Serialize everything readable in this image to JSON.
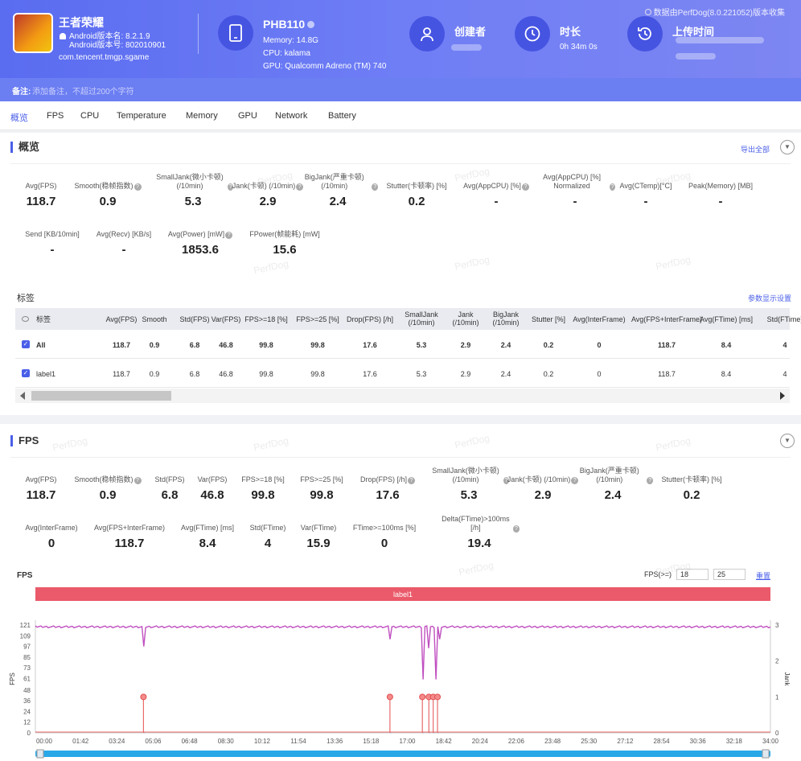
{
  "app": {
    "name": "王者荣耀",
    "version_name": "Android版本名: 8.2.1.9",
    "version_code": "Android版本号: 802010901",
    "package": "com.tencent.tmgp.sgame"
  },
  "device": {
    "model": "PHB110",
    "memory": "Memory: 14.8G",
    "cpu": "CPU: kalama",
    "gpu": "GPU: Qualcomm Adreno (TM) 740"
  },
  "creator": {
    "label": "创建者"
  },
  "duration": {
    "label": "时长",
    "value": "0h 34m 0s"
  },
  "upload": {
    "label": "上传时间"
  },
  "source_note": "数据由PerfDog(8.0.221052)版本收集",
  "note": {
    "label": "备注:",
    "placeholder": "添加备注，不超过200个字符"
  },
  "tabs": [
    "概览",
    "FPS",
    "CPU",
    "Temperature",
    "Memory",
    "GPU",
    "Network",
    "Battery"
  ],
  "overview": {
    "title": "概览",
    "export": "导出全部",
    "metrics_row1": [
      {
        "label": "Avg(FPS)",
        "value": "118.7"
      },
      {
        "label": "Smooth(稳帧指数)",
        "value": "0.9",
        "q": true
      },
      {
        "label": "SmallJank(微小卡顿) (/10min)",
        "value": "5.3",
        "q": true
      },
      {
        "label": "Jank(卡顿) (/10min)",
        "value": "2.9",
        "q": true
      },
      {
        "label": "BigJank(严重卡顿) (/10min)",
        "value": "2.4",
        "q": true
      },
      {
        "label": "Stutter(卡顿率) [%]",
        "value": "0.2"
      },
      {
        "label": "Avg(AppCPU) [%]",
        "value": "-",
        "q": true
      },
      {
        "label": "Avg(AppCPU) [%] Normalized",
        "value": "-",
        "q": true
      },
      {
        "label": "Avg(CTemp)[°C]",
        "value": "-"
      },
      {
        "label": "Peak(Memory) [MB]",
        "value": "-"
      }
    ],
    "metrics_row2": [
      {
        "label": "Send [KB/10min]",
        "value": "-"
      },
      {
        "label": "Avg(Recv) [KB/s]",
        "value": "-"
      },
      {
        "label": "Avg(Power) [mW]",
        "value": "1853.6",
        "q": true
      },
      {
        "label": "FPower(帧能耗) [mW]",
        "value": "15.6"
      }
    ],
    "labels_title": "标签",
    "param_settings": "参数显示设置",
    "table_headers": [
      "标签",
      "Avg(FPS)",
      "Smooth",
      "Std(FPS)",
      "Var(FPS)",
      "FPS>=18 [%]",
      "FPS>=25 [%]",
      "Drop(FPS) [/h]",
      "SmallJank (/10min)",
      "Jank (/10min)",
      "BigJank (/10min)",
      "Stutter [%]",
      "Avg(InterFrame)",
      "Avg(FPS+InterFrame)",
      "Avg(FTime) [ms]",
      "Std(FTime)"
    ],
    "table_rows": [
      [
        "All",
        "118.7",
        "0.9",
        "6.8",
        "46.8",
        "99.8",
        "99.8",
        "17.6",
        "5.3",
        "2.9",
        "2.4",
        "0.2",
        "0",
        "118.7",
        "8.4",
        "4"
      ],
      [
        "label1",
        "118.7",
        "0.9",
        "6.8",
        "46.8",
        "99.8",
        "99.8",
        "17.6",
        "5.3",
        "2.9",
        "2.4",
        "0.2",
        "0",
        "118.7",
        "8.4",
        "4"
      ]
    ]
  },
  "fps": {
    "title": "FPS",
    "metrics_row1": [
      {
        "label": "Avg(FPS)",
        "value": "118.7"
      },
      {
        "label": "Smooth(稳帧指数)",
        "value": "0.9",
        "q": true
      },
      {
        "label": "Std(FPS)",
        "value": "6.8"
      },
      {
        "label": "Var(FPS)",
        "value": "46.8"
      },
      {
        "label": "FPS>=18 [%]",
        "value": "99.8"
      },
      {
        "label": "FPS>=25 [%]",
        "value": "99.8"
      },
      {
        "label": "Drop(FPS) [/h]",
        "value": "17.6",
        "q": true
      },
      {
        "label": "SmallJank(微小卡顿) (/10min)",
        "value": "5.3",
        "q": true
      },
      {
        "label": "Jank(卡顿) (/10min)",
        "value": "2.9",
        "q": true
      },
      {
        "label": "BigJank(严重卡顿) (/10min)",
        "value": "2.4",
        "q": true
      },
      {
        "label": "Stutter(卡顿率) [%]",
        "value": "0.2"
      }
    ],
    "metrics_row2": [
      {
        "label": "Avg(InterFrame)",
        "value": "0"
      },
      {
        "label": "Avg(FPS+InterFrame)",
        "value": "118.7"
      },
      {
        "label": "Avg(FTime) [ms]",
        "value": "8.4"
      },
      {
        "label": "Std(FTime)",
        "value": "4"
      },
      {
        "label": "Var(FTime)",
        "value": "15.9"
      },
      {
        "label": "FTime>=100ms [%]",
        "value": "0"
      },
      {
        "label": "Delta(FTime)>100ms [/h]",
        "value": "19.4",
        "q": true
      }
    ],
    "chart_title": "FPS",
    "threshold_label": "FPS(>=)",
    "threshold1": "18",
    "threshold2": "25",
    "reset": "重置"
  },
  "watermark": "PerfDog",
  "chart_data": {
    "type": "line",
    "label_band": "label1",
    "y_left": {
      "label": "FPS",
      "ticks": [
        0,
        12,
        24,
        36,
        48,
        61,
        73,
        85,
        97,
        109,
        121
      ],
      "range": [
        0,
        121
      ]
    },
    "y_right": {
      "label": "Jank",
      "ticks": [
        0,
        1,
        2,
        3
      ],
      "range": [
        0,
        3
      ]
    },
    "x_ticks": [
      "00:00",
      "01:42",
      "03:24",
      "05:06",
      "06:48",
      "08:30",
      "10:12",
      "11:54",
      "13:36",
      "15:18",
      "17:00",
      "18:42",
      "20:24",
      "22:06",
      "23:48",
      "25:30",
      "27:12",
      "28:54",
      "30:36",
      "32:18",
      "34:00"
    ],
    "x_range_min": [
      0,
      34
    ],
    "series": [
      {
        "name": "FPS",
        "color": "#c04fc0",
        "baseline": 119,
        "dips": [
          [
            5.0,
            97
          ],
          [
            16.4,
            105
          ],
          [
            17.9,
            60
          ],
          [
            18.2,
            95
          ],
          [
            18.5,
            60
          ],
          [
            18.7,
            105
          ]
        ]
      },
      {
        "name": "Jank",
        "color": "#e86a6a",
        "events": [
          [
            5.0,
            1
          ],
          [
            16.4,
            1
          ],
          [
            17.9,
            1
          ],
          [
            18.2,
            1
          ],
          [
            18.4,
            1
          ],
          [
            18.6,
            1
          ]
        ]
      }
    ]
  }
}
